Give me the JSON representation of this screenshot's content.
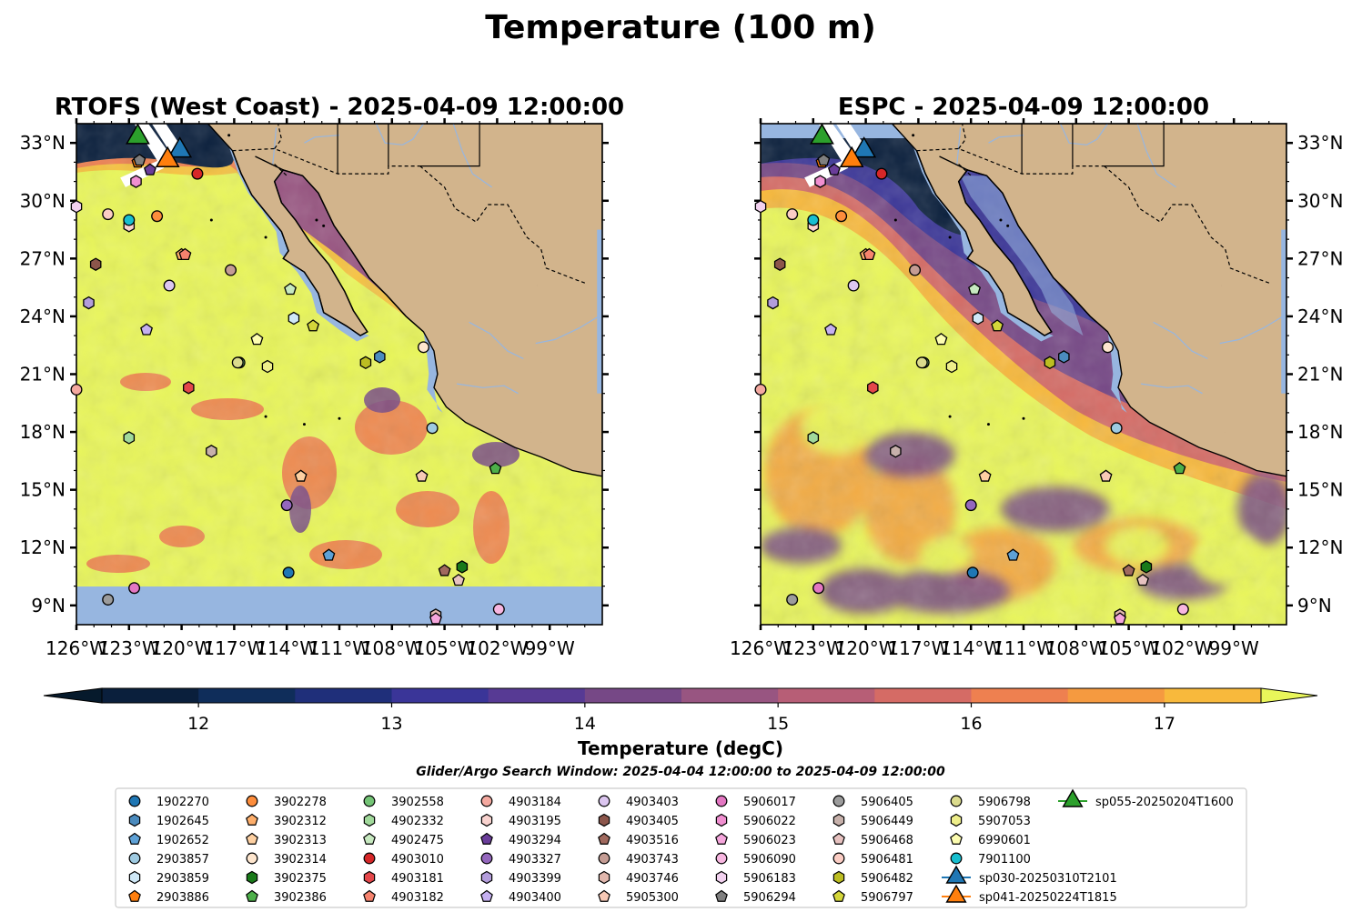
{
  "figure": {
    "title": "Temperature (100 m)",
    "window_text": "Glider/Argo Search Window: 2025-04-04 12:00:00 to 2025-04-09 12:00:00"
  },
  "colors": {
    "land": "#d2b48c",
    "no_data_water": "#97b6e0",
    "rivers": "#97b6e0",
    "coast": "#000000"
  },
  "chart_data": {
    "type": "map",
    "panels": [
      {
        "id": "rtofs",
        "title": "RTOFS (West Coast) - 2025-04-09 12:00:00",
        "lat_label_side": "left"
      },
      {
        "id": "espc",
        "title": "ESPC - 2025-04-09 12:00:00",
        "lat_label_side": "right"
      }
    ],
    "lon_range": [
      -126,
      -96
    ],
    "lat_range": [
      8,
      34
    ],
    "lon_ticks": [
      {
        "value": -126,
        "label": "126°W"
      },
      {
        "value": -123,
        "label": "123°W"
      },
      {
        "value": -120,
        "label": "120°W"
      },
      {
        "value": -117,
        "label": "117°W"
      },
      {
        "value": -114,
        "label": "114°W"
      },
      {
        "value": -111,
        "label": "111°W"
      },
      {
        "value": -108,
        "label": "108°W"
      },
      {
        "value": -105,
        "label": "105°W"
      },
      {
        "value": -102,
        "label": "102°W"
      },
      {
        "value": -99,
        "label": "99°W"
      }
    ],
    "lat_ticks": [
      {
        "value": 33,
        "label": "33°N"
      },
      {
        "value": 30,
        "label": "30°N"
      },
      {
        "value": 27,
        "label": "27°N"
      },
      {
        "value": 24,
        "label": "24°N"
      },
      {
        "value": 21,
        "label": "21°N"
      },
      {
        "value": 18,
        "label": "18°N"
      },
      {
        "value": 15,
        "label": "15°N"
      },
      {
        "value": 12,
        "label": "12°N"
      },
      {
        "value": 9,
        "label": "9°N"
      }
    ],
    "colorbar": {
      "label": "Temperature (degC)",
      "min": 11.5,
      "max": 17.5,
      "step": 0.5,
      "extend": "both",
      "ticks": [
        12,
        13,
        14,
        15,
        16,
        17
      ],
      "colors": [
        "#0a1f3c",
        "#0f2d5a",
        "#1f2f7a",
        "#3a3598",
        "#573a94",
        "#764886",
        "#985581",
        "#b75e76",
        "#d56b65",
        "#ee8050",
        "#f59a40",
        "#f8b93c",
        "#e9f65a"
      ],
      "under_color": "#061a2c",
      "over_color": "#e9f65a"
    },
    "gliders": [
      {
        "id": "sp030-20250310T2101",
        "color": "#1f77b4",
        "lon": -120.1,
        "lat": 32.6
      },
      {
        "id": "sp041-20250224T1815",
        "color": "#ff7f0e",
        "lon": -120.8,
        "lat": 32.1
      },
      {
        "id": "sp055-20250204T1600",
        "color": "#2ca02c",
        "lon": -122.5,
        "lat": 33.3
      }
    ],
    "argo": [
      {
        "id": "1902270",
        "marker": "circle",
        "color": "#1f77b4",
        "lon": -113.9,
        "lat": 10.7
      },
      {
        "id": "1902645",
        "marker": "hexagon",
        "color": "#4b8bbe",
        "lon": -108.7,
        "lat": 21.9
      },
      {
        "id": "1902652",
        "marker": "pentagon",
        "color": "#5ea1d6",
        "lon": -111.6,
        "lat": 11.6
      },
      {
        "id": "2903857",
        "marker": "circle",
        "color": "#9ecae1",
        "lon": -105.7,
        "lat": 18.2
      },
      {
        "id": "2903859",
        "marker": "hexagon",
        "color": "#cfe8f7",
        "lon": -113.6,
        "lat": 23.9
      },
      {
        "id": "2903886",
        "marker": "pentagon",
        "color": "#ff7f0e",
        "lon": -122.5,
        "lat": 32.0
      },
      {
        "id": "3902278",
        "marker": "circle",
        "color": "#fd8d3c",
        "lon": -121.4,
        "lat": 29.2
      },
      {
        "id": "3902312",
        "marker": "pentagon",
        "color": "#fdae6b",
        "lon": -120.0,
        "lat": 27.2
      },
      {
        "id": "3902313",
        "marker": "pentagon",
        "color": "#fdd0a2",
        "lon": -113.2,
        "lat": 15.7
      },
      {
        "id": "3902314",
        "marker": "circle",
        "color": "#fee6ce",
        "lon": -106.2,
        "lat": 22.4
      },
      {
        "id": "3902375",
        "marker": "hexagon",
        "color": "#1a7a1a",
        "lon": -104.0,
        "lat": 11.0
      },
      {
        "id": "3902386",
        "marker": "pentagon",
        "color": "#4daf4a",
        "lon": -102.1,
        "lat": 16.1
      },
      {
        "id": "3902558",
        "marker": "circle",
        "color": "#74c476",
        "lon": -116.7,
        "lat": 21.6
      },
      {
        "id": "4902332",
        "marker": "hexagon",
        "color": "#a1d99b",
        "lon": -123.0,
        "lat": 17.7
      },
      {
        "id": "4902475",
        "marker": "pentagon",
        "color": "#c7e9c0",
        "lon": -113.8,
        "lat": 25.4
      },
      {
        "id": "4903010",
        "marker": "circle",
        "color": "#d62728",
        "lon": -119.1,
        "lat": 31.4
      },
      {
        "id": "4903181",
        "marker": "hexagon",
        "color": "#e4474a",
        "lon": -119.6,
        "lat": 20.3
      },
      {
        "id": "4903182",
        "marker": "pentagon",
        "color": "#f6836e",
        "lon": -119.8,
        "lat": 27.2
      },
      {
        "id": "4903184",
        "marker": "circle",
        "color": "#f4a9a0",
        "lon": -126.0,
        "lat": 20.2
      },
      {
        "id": "4903195",
        "marker": "hexagon",
        "color": "#f9d3cf",
        "lon": -123.0,
        "lat": 28.7
      },
      {
        "id": "4903294",
        "marker": "pentagon",
        "color": "#6a3d9a",
        "lon": -121.8,
        "lat": 31.6
      },
      {
        "id": "4903327",
        "marker": "circle",
        "color": "#9467bd",
        "lon": -114.0,
        "lat": 14.2
      },
      {
        "id": "4903399",
        "marker": "hexagon",
        "color": "#b39ddb",
        "lon": -125.3,
        "lat": 24.7
      },
      {
        "id": "4903400",
        "marker": "pentagon",
        "color": "#c5b0f0",
        "lon": -122.0,
        "lat": 23.3
      },
      {
        "id": "4903403",
        "marker": "circle",
        "color": "#dcc6f0",
        "lon": -120.7,
        "lat": 25.6
      },
      {
        "id": "4903405",
        "marker": "hexagon",
        "color": "#8c564b",
        "lon": -124.9,
        "lat": 26.7
      },
      {
        "id": "4903516",
        "marker": "pentagon",
        "color": "#a0695e",
        "lon": -105.0,
        "lat": 10.8
      },
      {
        "id": "4903743",
        "marker": "circle",
        "color": "#c49c94",
        "lon": -117.2,
        "lat": 26.4
      },
      {
        "id": "4903746",
        "marker": "hexagon",
        "color": "#e0b7ad",
        "lon": -105.5,
        "lat": 8.5
      },
      {
        "id": "5905300",
        "marker": "pentagon",
        "color": "#f7c9b6",
        "lon": -106.3,
        "lat": 15.7
      },
      {
        "id": "5906017",
        "marker": "circle",
        "color": "#e377c2",
        "lon": -122.7,
        "lat": 9.9
      },
      {
        "id": "5906022",
        "marker": "hexagon",
        "color": "#f08fd0",
        "lon": -122.6,
        "lat": 31.0
      },
      {
        "id": "5906023",
        "marker": "pentagon",
        "color": "#f5a6dc",
        "lon": -105.5,
        "lat": 8.3
      },
      {
        "id": "5906090",
        "marker": "circle",
        "color": "#f7b6e0",
        "lon": -101.9,
        "lat": 8.8
      },
      {
        "id": "5906183",
        "marker": "hexagon",
        "color": "#f2d1ef",
        "lon": -126.0,
        "lat": 29.7
      },
      {
        "id": "5906294",
        "marker": "pentagon",
        "color": "#7f7f7f",
        "lon": -122.4,
        "lat": 32.1
      },
      {
        "id": "5906405",
        "marker": "circle",
        "color": "#9c9c9c",
        "lon": -124.2,
        "lat": 9.3
      },
      {
        "id": "5906449",
        "marker": "hexagon",
        "color": "#c7b1ab",
        "lon": -118.3,
        "lat": 17.0
      },
      {
        "id": "5906468",
        "marker": "pentagon",
        "color": "#e7c2c0",
        "lon": -104.2,
        "lat": 10.3
      },
      {
        "id": "5906481",
        "marker": "circle",
        "color": "#fbcdc4",
        "lon": -124.2,
        "lat": 29.3
      },
      {
        "id": "5906482",
        "marker": "hexagon",
        "color": "#bcbd22",
        "lon": -109.5,
        "lat": 21.6
      },
      {
        "id": "5906797",
        "marker": "pentagon",
        "color": "#d4d63a",
        "lon": -112.5,
        "lat": 23.5
      },
      {
        "id": "5906798",
        "marker": "circle",
        "color": "#dbdb8d",
        "lon": -116.8,
        "lat": 21.6
      },
      {
        "id": "5907053",
        "marker": "hexagon",
        "color": "#eeee8a",
        "lon": -115.1,
        "lat": 21.4
      },
      {
        "id": "6990601",
        "marker": "pentagon",
        "color": "#fdfdb0",
        "lon": -115.7,
        "lat": 22.8
      },
      {
        "id": "7901100",
        "marker": "circle",
        "color": "#17becf",
        "lon": -123.0,
        "lat": 29.0
      }
    ]
  }
}
